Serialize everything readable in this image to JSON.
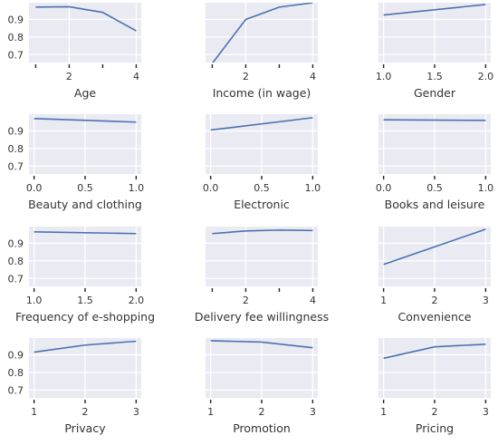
{
  "chart_data": [
    {
      "type": "line",
      "xlabel": "Age",
      "x": [
        1,
        2,
        3,
        4
      ],
      "y": [
        0.97,
        0.972,
        0.94,
        0.835
      ],
      "xlim": [
        0.8,
        4.15
      ],
      "ylim": [
        0.655,
        0.995
      ],
      "xticks": [
        2,
        4
      ],
      "xtick_marks": [
        1,
        2,
        3,
        4
      ],
      "xtick_labels": [
        "2",
        "4"
      ],
      "yticks": [
        0.7,
        0.8,
        0.9
      ],
      "ytick_labels": [
        "0.7",
        "0.8",
        "0.9"
      ]
    },
    {
      "type": "line",
      "xlabel": "Income (in wage)",
      "x": [
        1,
        2,
        3,
        4
      ],
      "y": [
        0.65,
        0.9,
        0.97,
        0.995
      ],
      "xlim": [
        0.8,
        4.15
      ],
      "ylim": [
        0.655,
        0.995
      ],
      "xticks": [
        2,
        4
      ],
      "xtick_marks": [
        1,
        2,
        3,
        4
      ],
      "xtick_labels": [
        "2",
        "4"
      ],
      "yticks": [],
      "ytick_labels": []
    },
    {
      "type": "line",
      "xlabel": "Gender",
      "x": [
        1.0,
        2.0
      ],
      "y": [
        0.925,
        0.985
      ],
      "xlim": [
        0.95,
        2.05
      ],
      "ylim": [
        0.655,
        0.995
      ],
      "xticks": [
        1.0,
        1.5,
        2.0
      ],
      "xtick_marks": [
        1.0,
        1.5,
        2.0
      ],
      "xtick_labels": [
        "1.0",
        "1.5",
        "2.0"
      ],
      "yticks": [],
      "ytick_labels": []
    },
    {
      "type": "line",
      "xlabel": "Beauty and clothing",
      "x": [
        0.0,
        1.0
      ],
      "y": [
        0.97,
        0.95
      ],
      "xlim": [
        -0.05,
        1.05
      ],
      "ylim": [
        0.655,
        0.995
      ],
      "xticks": [
        0.0,
        0.5,
        1.0
      ],
      "xtick_marks": [
        0.0,
        0.5,
        1.0
      ],
      "xtick_labels": [
        "0.0",
        "0.5",
        "1.0"
      ],
      "yticks": [
        0.7,
        0.8,
        0.9
      ],
      "ytick_labels": [
        "0.7",
        "0.8",
        "0.9"
      ]
    },
    {
      "type": "line",
      "xlabel": "Electronic",
      "x": [
        0.0,
        1.0
      ],
      "y": [
        0.905,
        0.975
      ],
      "xlim": [
        -0.05,
        1.05
      ],
      "ylim": [
        0.655,
        0.995
      ],
      "xticks": [
        0.0,
        0.5,
        1.0
      ],
      "xtick_marks": [
        0.0,
        0.5,
        1.0
      ],
      "xtick_labels": [
        "0.0",
        "0.5",
        "1.0"
      ],
      "yticks": [],
      "ytick_labels": []
    },
    {
      "type": "line",
      "xlabel": "Books and leisure",
      "x": [
        0.0,
        1.0
      ],
      "y": [
        0.963,
        0.96
      ],
      "xlim": [
        -0.05,
        1.05
      ],
      "ylim": [
        0.655,
        0.995
      ],
      "xticks": [
        0.0,
        0.5,
        1.0
      ],
      "xtick_marks": [
        0.0,
        0.5,
        1.0
      ],
      "xtick_labels": [
        "0.0",
        "0.5",
        "1.0"
      ],
      "yticks": [],
      "ytick_labels": []
    },
    {
      "type": "line",
      "xlabel": "Frequency of e-shopping",
      "x": [
        1.0,
        2.0
      ],
      "y": [
        0.965,
        0.955
      ],
      "xlim": [
        0.95,
        2.05
      ],
      "ylim": [
        0.655,
        0.995
      ],
      "xticks": [
        1.0,
        1.5,
        2.0
      ],
      "xtick_marks": [
        1.0,
        1.5,
        2.0
      ],
      "xtick_labels": [
        "1.0",
        "1.5",
        "2.0"
      ],
      "yticks": [
        0.7,
        0.8,
        0.9
      ],
      "ytick_labels": [
        "0.7",
        "0.8",
        "0.9"
      ]
    },
    {
      "type": "line",
      "xlabel": "Delivery fee willingness",
      "x": [
        1,
        2,
        3,
        4
      ],
      "y": [
        0.955,
        0.97,
        0.975,
        0.973
      ],
      "xlim": [
        0.8,
        4.15
      ],
      "ylim": [
        0.655,
        0.995
      ],
      "xticks": [
        2,
        4
      ],
      "xtick_marks": [
        1,
        2,
        3,
        4
      ],
      "xtick_labels": [
        "2",
        "4"
      ],
      "yticks": [],
      "ytick_labels": []
    },
    {
      "type": "line",
      "xlabel": "Convenience",
      "x": [
        1,
        2,
        3
      ],
      "y": [
        0.78,
        0.88,
        0.98
      ],
      "xlim": [
        0.9,
        3.1
      ],
      "ylim": [
        0.655,
        0.995
      ],
      "xticks": [
        1,
        2,
        3
      ],
      "xtick_marks": [
        1,
        2,
        3
      ],
      "xtick_labels": [
        "1",
        "2",
        "3"
      ],
      "yticks": [],
      "ytick_labels": []
    },
    {
      "type": "line",
      "xlabel": "Privacy",
      "x": [
        1,
        2,
        3
      ],
      "y": [
        0.915,
        0.955,
        0.977
      ],
      "xlim": [
        0.9,
        3.1
      ],
      "ylim": [
        0.655,
        0.995
      ],
      "xticks": [
        1,
        2,
        3
      ],
      "xtick_marks": [
        1,
        2,
        3
      ],
      "xtick_labels": [
        "1",
        "2",
        "3"
      ],
      "yticks": [
        0.7,
        0.8,
        0.9
      ],
      "ytick_labels": [
        "0.7",
        "0.8",
        "0.9"
      ]
    },
    {
      "type": "line",
      "xlabel": "Promotion",
      "x": [
        1,
        2,
        3
      ],
      "y": [
        0.98,
        0.972,
        0.94
      ],
      "xlim": [
        0.9,
        3.1
      ],
      "ylim": [
        0.655,
        0.995
      ],
      "xticks": [
        1,
        2,
        3
      ],
      "xtick_marks": [
        1,
        2,
        3
      ],
      "xtick_labels": [
        "1",
        "2",
        "3"
      ],
      "yticks": [],
      "ytick_labels": []
    },
    {
      "type": "line",
      "xlabel": "Pricing",
      "x": [
        1,
        2,
        3
      ],
      "y": [
        0.88,
        0.945,
        0.96
      ],
      "xlim": [
        0.9,
        3.1
      ],
      "ylim": [
        0.655,
        0.995
      ],
      "xticks": [
        1,
        2,
        3
      ],
      "xtick_marks": [
        1,
        2,
        3
      ],
      "xtick_labels": [
        "1",
        "2",
        "3"
      ],
      "yticks": [],
      "ytick_labels": []
    }
  ],
  "colors": {
    "panel_background": "#e9eaf2",
    "grid": "#ffffff",
    "series": "#4c72b0",
    "text": "#333333"
  }
}
